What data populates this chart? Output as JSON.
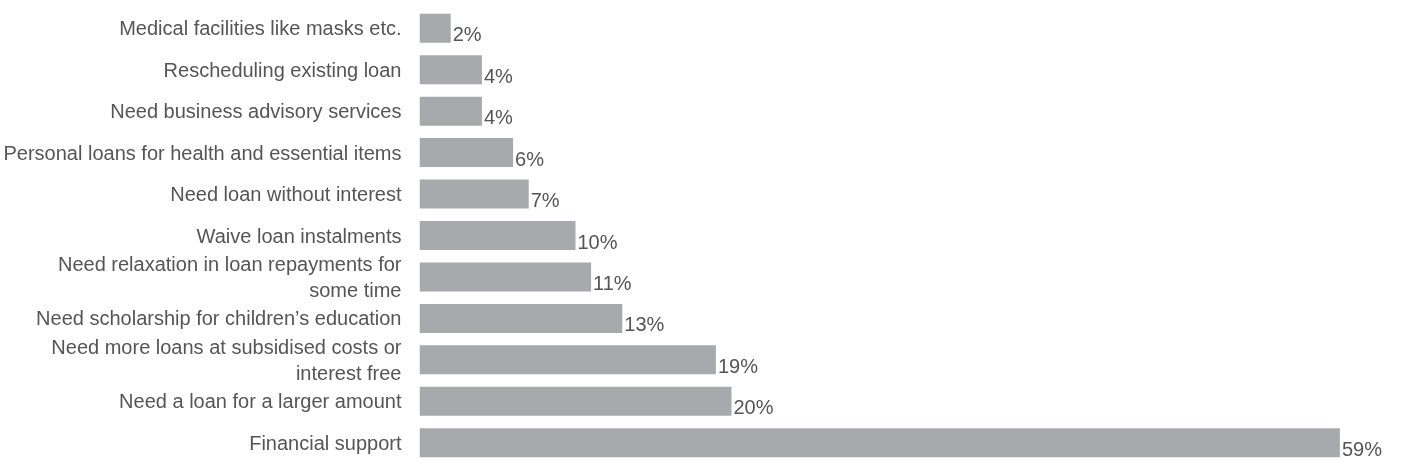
{
  "chart_data": {
    "type": "bar",
    "orientation": "horizontal",
    "categories": [
      "Medical facilities like masks etc.",
      "Rescheduling existing loan",
      "Need business advisory services",
      "Personal loans for health and essential items",
      "Need loan without interest",
      "Waive loan instalments",
      "Need relaxation in loan repayments for\nsome time",
      "Need scholarship for children’s education",
      "Need more loans at subsidised costs or\ninterest free",
      "Need a loan for a larger amount",
      "Financial support"
    ],
    "values": [
      2,
      4,
      4,
      6,
      7,
      10,
      11,
      13,
      19,
      20,
      59
    ],
    "value_labels": [
      "2%",
      "4%",
      "4%",
      "6%",
      "7%",
      "10%",
      "11%",
      "13%",
      "19%",
      "20%",
      "59%"
    ],
    "color": "#a7a9ac",
    "grid": false
  }
}
